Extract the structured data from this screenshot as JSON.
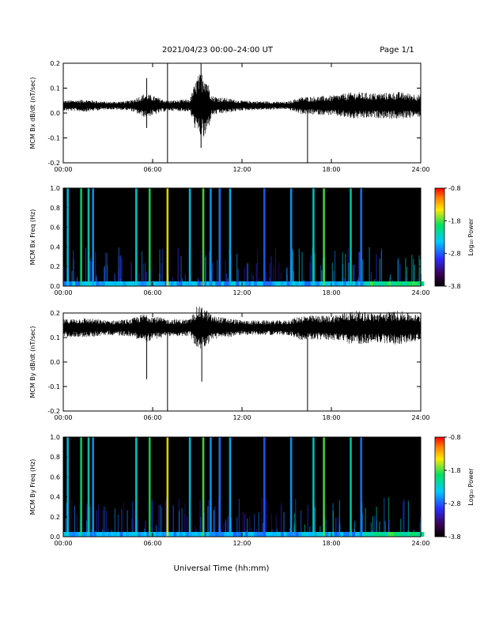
{
  "header": {
    "title": "2021/04/23  00:00–24:00 UT",
    "page": "Page 1/1"
  },
  "footer": {
    "xlabel": "Universal Time (hh:mm)"
  },
  "colorbar": {
    "ticks": [
      "-0.8",
      "-1.8",
      "-2.8",
      "-3.8"
    ],
    "label": "Log₁₀ Power"
  },
  "chart_data": [
    {
      "type": "line",
      "ylabel": "MCM Bx dB/dt (nT/sec)",
      "xlabel": "",
      "xticks": [
        "00:00",
        "06:00",
        "12:00",
        "18:00",
        "24:00"
      ],
      "yticks": [
        "0.2",
        "0.1",
        "0.0",
        "-0.1",
        "-0.2"
      ],
      "xlim": [
        0,
        24
      ],
      "ylim": [
        -0.2,
        0.2
      ],
      "baseline": 0.03,
      "envelope": [
        {
          "x": 0,
          "y": 0.02
        },
        {
          "x": 1.5,
          "y": 0.025
        },
        {
          "x": 3,
          "y": 0.015
        },
        {
          "x": 4.5,
          "y": 0.02
        },
        {
          "x": 5.5,
          "y": 0.05
        },
        {
          "x": 6,
          "y": 0.04
        },
        {
          "x": 7,
          "y": 0.02
        },
        {
          "x": 8.5,
          "y": 0.025
        },
        {
          "x": 9,
          "y": 0.12
        },
        {
          "x": 9.5,
          "y": 0.14
        },
        {
          "x": 10,
          "y": 0.04
        },
        {
          "x": 12,
          "y": 0.02
        },
        {
          "x": 15,
          "y": 0.015
        },
        {
          "x": 16,
          "y": 0.035
        },
        {
          "x": 18,
          "y": 0.04
        },
        {
          "x": 19.5,
          "y": 0.055
        },
        {
          "x": 21,
          "y": 0.05
        },
        {
          "x": 22.5,
          "y": 0.055
        },
        {
          "x": 24,
          "y": 0.045
        }
      ],
      "spikes": [
        {
          "x": 7.0,
          "y0": 0.2,
          "y1": -0.2
        },
        {
          "x": 16.4,
          "y0": 0.03,
          "y1": -0.2
        },
        {
          "x": 9.25,
          "y0": 0.2,
          "y1": -0.14
        },
        {
          "x": 5.6,
          "y0": 0.14,
          "y1": -0.06
        }
      ]
    },
    {
      "type": "heatmap",
      "ylabel": "MCM Bx Freq (Hz)",
      "xticks": [
        "00:00",
        "06:00",
        "12:00",
        "18:00",
        "24:00"
      ],
      "yticks": [
        "1.0",
        "0.8",
        "0.6",
        "0.4",
        "0.2",
        "0.0"
      ],
      "xlim": [
        0,
        24
      ],
      "ylim": [
        0,
        1.0
      ],
      "zlim": [
        -3.8,
        -0.8
      ],
      "background": -3.8,
      "bright_lines": [
        {
          "x": 0.3,
          "p": -2.4
        },
        {
          "x": 1.2,
          "p": -2.0
        },
        {
          "x": 1.7,
          "p": -2.2
        },
        {
          "x": 2.0,
          "p": -2.6
        },
        {
          "x": 4.9,
          "p": -2.3
        },
        {
          "x": 5.8,
          "p": -1.9
        },
        {
          "x": 7.0,
          "p": -1.5
        },
        {
          "x": 8.5,
          "p": -2.4
        },
        {
          "x": 9.4,
          "p": -1.8
        },
        {
          "x": 9.9,
          "p": -2.6
        },
        {
          "x": 10.5,
          "p": -2.7
        },
        {
          "x": 11.2,
          "p": -2.5
        },
        {
          "x": 13.5,
          "p": -2.8
        },
        {
          "x": 15.3,
          "p": -2.6
        },
        {
          "x": 16.8,
          "p": -2.3
        },
        {
          "x": 17.5,
          "p": -1.8
        },
        {
          "x": 19.3,
          "p": -2.2
        },
        {
          "x": 20.0,
          "p": -2.7
        }
      ]
    },
    {
      "type": "line",
      "ylabel": "MCM By dB/dt (nT/sec)",
      "xticks": [
        "00:00",
        "06:00",
        "12:00",
        "18:00",
        "24:00"
      ],
      "yticks": [
        "0.2",
        "0.1",
        "0.0",
        "-0.1",
        "-0.2"
      ],
      "xlim": [
        0,
        24
      ],
      "ylim": [
        -0.2,
        0.2
      ],
      "baseline": 0.14,
      "envelope": [
        {
          "x": 0,
          "y": 0.035
        },
        {
          "x": 1.5,
          "y": 0.04
        },
        {
          "x": 3,
          "y": 0.03
        },
        {
          "x": 4.5,
          "y": 0.035
        },
        {
          "x": 5.5,
          "y": 0.06
        },
        {
          "x": 6,
          "y": 0.05
        },
        {
          "x": 7,
          "y": 0.035
        },
        {
          "x": 8.5,
          "y": 0.035
        },
        {
          "x": 9,
          "y": 0.09
        },
        {
          "x": 9.5,
          "y": 0.08
        },
        {
          "x": 10,
          "y": 0.05
        },
        {
          "x": 12,
          "y": 0.03
        },
        {
          "x": 15,
          "y": 0.03
        },
        {
          "x": 16,
          "y": 0.05
        },
        {
          "x": 18,
          "y": 0.05
        },
        {
          "x": 19.5,
          "y": 0.07
        },
        {
          "x": 21,
          "y": 0.06
        },
        {
          "x": 22.5,
          "y": 0.07
        },
        {
          "x": 24,
          "y": 0.05
        }
      ],
      "spikes": [
        {
          "x": 7.0,
          "y0": 0.14,
          "y1": -0.2
        },
        {
          "x": 16.4,
          "y0": 0.14,
          "y1": -0.2
        },
        {
          "x": 5.6,
          "y0": 0.14,
          "y1": -0.07
        },
        {
          "x": 9.3,
          "y0": 0.14,
          "y1": -0.08
        }
      ]
    },
    {
      "type": "heatmap",
      "ylabel": "MCM By Freq (Hz)",
      "xticks": [
        "00:00",
        "06:00",
        "12:00",
        "18:00",
        "24:00"
      ],
      "yticks": [
        "1.0",
        "0.8",
        "0.6",
        "0.4",
        "0.2",
        "0.0"
      ],
      "xlim": [
        0,
        24
      ],
      "ylim": [
        0,
        1.0
      ],
      "zlim": [
        -3.8,
        -0.8
      ],
      "background": -3.8,
      "bright_lines": [
        {
          "x": 0.3,
          "p": -2.4
        },
        {
          "x": 1.2,
          "p": -2.0
        },
        {
          "x": 1.7,
          "p": -2.2
        },
        {
          "x": 2.0,
          "p": -2.6
        },
        {
          "x": 4.9,
          "p": -2.3
        },
        {
          "x": 5.8,
          "p": -1.9
        },
        {
          "x": 7.0,
          "p": -1.5
        },
        {
          "x": 8.5,
          "p": -2.4
        },
        {
          "x": 9.4,
          "p": -1.8
        },
        {
          "x": 9.9,
          "p": -2.6
        },
        {
          "x": 10.5,
          "p": -2.7
        },
        {
          "x": 11.2,
          "p": -2.5
        },
        {
          "x": 13.5,
          "p": -2.8
        },
        {
          "x": 15.3,
          "p": -2.6
        },
        {
          "x": 16.8,
          "p": -2.3
        },
        {
          "x": 17.5,
          "p": -1.8
        },
        {
          "x": 19.3,
          "p": -2.2
        },
        {
          "x": 20.0,
          "p": -2.7
        }
      ]
    }
  ]
}
